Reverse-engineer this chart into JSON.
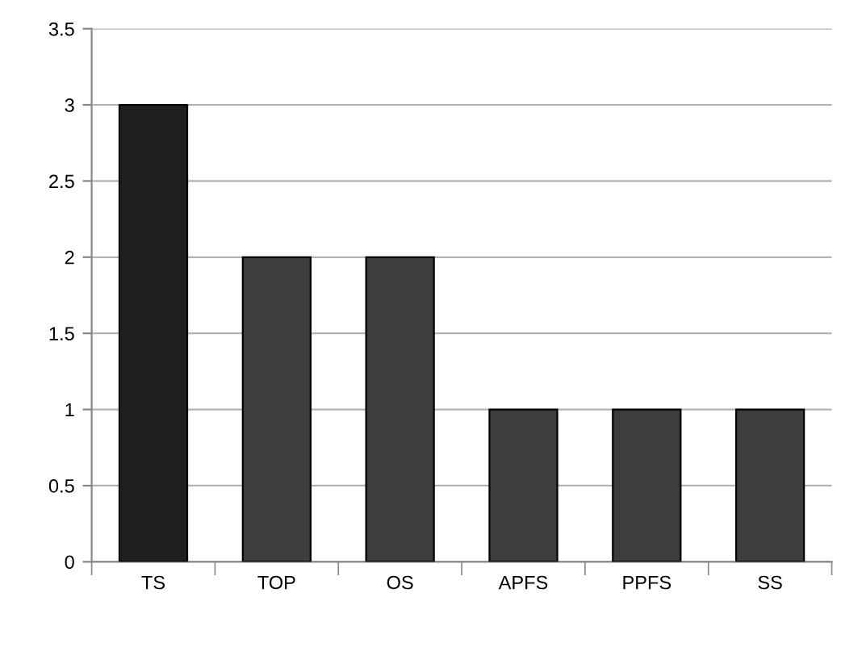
{
  "chart_data": {
    "type": "bar",
    "categories": [
      "TS",
      "TOP",
      "OS",
      "APFS",
      "PPFS",
      "SS"
    ],
    "values": [
      3,
      2,
      2,
      1,
      1,
      1
    ],
    "colors": [
      "#1f1f1f",
      "#3d3d3d",
      "#3d3d3d",
      "#3d3d3d",
      "#3d3d3d",
      "#3d3d3d"
    ],
    "ylim": [
      0,
      3.5
    ],
    "yticks": [
      0,
      {
        "value": 0.5,
        "label": "0.5"
      },
      1,
      {
        "value": 1.5,
        "label": "1.5"
      },
      2,
      {
        "value": 2.5,
        "label": "2.5"
      },
      3,
      {
        "value": 3.5,
        "label": "3.5"
      }
    ],
    "grid": "y"
  }
}
